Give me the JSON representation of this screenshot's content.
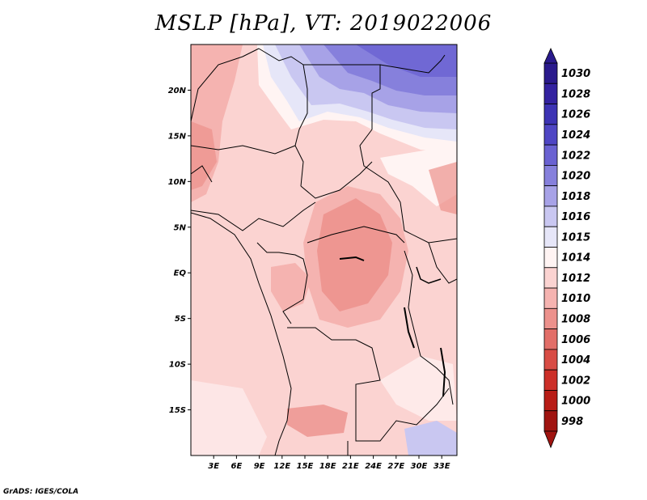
{
  "title": "MSLP [hPa], VT: 2019022006",
  "credit": "GrADS: IGES/COLA",
  "map": {
    "lon_range": [
      0,
      35
    ],
    "lat_range": [
      -20,
      25
    ],
    "lat_ticks": [
      {
        "value": 20,
        "label": "20N"
      },
      {
        "value": 15,
        "label": "15N"
      },
      {
        "value": 10,
        "label": "10N"
      },
      {
        "value": 5,
        "label": "5N"
      },
      {
        "value": 0,
        "label": "EQ"
      },
      {
        "value": -5,
        "label": "5S"
      },
      {
        "value": -10,
        "label": "10S"
      },
      {
        "value": -15,
        "label": "15S"
      }
    ],
    "lon_ticks": [
      {
        "value": 3,
        "label": "3E"
      },
      {
        "value": 6,
        "label": "6E"
      },
      {
        "value": 9,
        "label": "9E"
      },
      {
        "value": 12,
        "label": "12E"
      },
      {
        "value": 15,
        "label": "15E"
      },
      {
        "value": 18,
        "label": "18E"
      },
      {
        "value": 21,
        "label": "21E"
      },
      {
        "value": 24,
        "label": "24E"
      },
      {
        "value": 27,
        "label": "27E"
      },
      {
        "value": 30,
        "label": "30E"
      },
      {
        "value": 33,
        "label": "33E"
      }
    ]
  },
  "colorbar": {
    "levels": [
      {
        "label": "1030",
        "color": "#2a1a8c"
      },
      {
        "label": "1028",
        "color": "#3322a0"
      },
      {
        "label": "1026",
        "color": "#3d33b4"
      },
      {
        "label": "1024",
        "color": "#4f46c4"
      },
      {
        "label": "1022",
        "color": "#6a62d2"
      },
      {
        "label": "1020",
        "color": "#8680dc"
      },
      {
        "label": "1018",
        "color": "#a7a2e7"
      },
      {
        "label": "1016",
        "color": "#c9c7f1"
      },
      {
        "label": "1015",
        "color": "#e6e6f8"
      },
      {
        "label": "1014",
        "color": "#fff4f3"
      },
      {
        "label": "1012",
        "color": "#fbd3d1"
      },
      {
        "label": "1010",
        "color": "#f5b3b0"
      },
      {
        "label": "1008",
        "color": "#ec918c"
      },
      {
        "label": "1006",
        "color": "#e26e68"
      },
      {
        "label": "1004",
        "color": "#d84c45"
      },
      {
        "label": "1002",
        "color": "#cc2f28"
      },
      {
        "label": "1000",
        "color": "#b81c16"
      },
      {
        "label": "998",
        "color": "#a01410"
      }
    ]
  }
}
